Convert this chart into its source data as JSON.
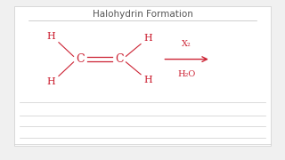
{
  "title": "Halohydrin Formation",
  "title_color": "#555555",
  "title_fontsize": 7.5,
  "bg_color": "#f0f0f0",
  "panel_bg": "#ffffff",
  "chem_color": "#cc2233",
  "line_color": "#cccccc",
  "label_x2": "X₂",
  "label_h2o": "H₂O",
  "arrow_color": "#cc2233"
}
